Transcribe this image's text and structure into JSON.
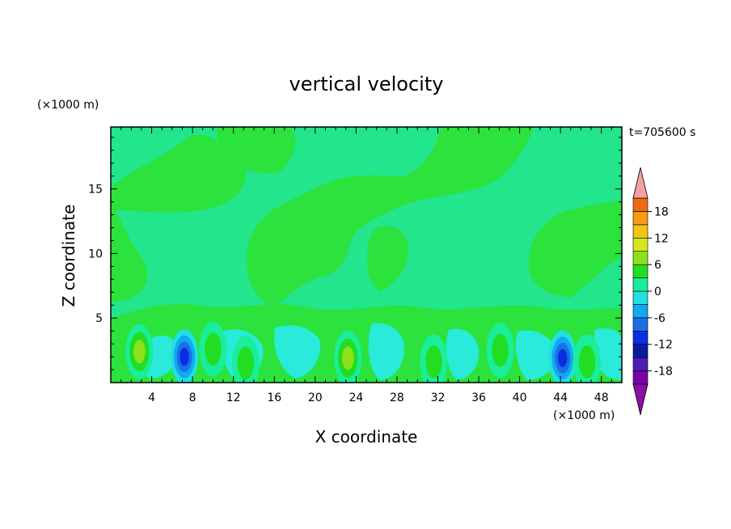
{
  "chart_data": {
    "type": "heatmap",
    "title": "vertical velocity",
    "xlabel": "X coordinate",
    "ylabel": "Z coordinate",
    "x_unit": "(×1000 m)",
    "y_unit": "(×1000 m)",
    "time_label": "t=705600 s",
    "xlim": [
      0,
      50
    ],
    "ylim": [
      0,
      19.8
    ],
    "x_ticks": [
      4,
      8,
      12,
      16,
      20,
      24,
      28,
      32,
      36,
      40,
      44,
      48
    ],
    "y_ticks": [
      5,
      10,
      15
    ],
    "colorbar": {
      "tick_labels": [
        "18",
        "12",
        "6",
        "0",
        "-6",
        "-12",
        "-18"
      ],
      "tick_values": [
        18,
        12,
        6,
        0,
        -6,
        -12,
        -18
      ],
      "levels": [
        -21,
        -18,
        -15,
        -12,
        -9,
        -6,
        -3,
        0,
        3,
        6,
        9,
        12,
        15,
        18,
        21
      ],
      "colors": [
        "#7a00a8",
        "#4b1fb0",
        "#0a1a9e",
        "#0b2ee0",
        "#1a6fe6",
        "#11a9f0",
        "#21e0e0",
        "#1aee9a",
        "#22dd22",
        "#8fe01c",
        "#d2e81a",
        "#f2c415",
        "#f49a14",
        "#f06a10",
        "#e52b18",
        "#d60e0e",
        "#f4a0a0"
      ],
      "over_color": "#f4a0a0",
      "under_color": "#8a0fa8"
    },
    "background_value": "-3 to 0",
    "features": [
      {
        "kind": "updraft",
        "x": 2.8,
        "z": 2.4,
        "w": 8
      },
      {
        "kind": "downdraft",
        "x": 7.2,
        "z": 2.0,
        "w": -12
      },
      {
        "kind": "updraft",
        "x": 10.0,
        "z": 2.6,
        "w": 6
      },
      {
        "kind": "updraft",
        "x": 13.2,
        "z": 1.5,
        "w": 7
      },
      {
        "kind": "updraft",
        "x": 23.2,
        "z": 1.9,
        "w": 10
      },
      {
        "kind": "updraft",
        "x": 31.6,
        "z": 1.6,
        "w": 6
      },
      {
        "kind": "updraft",
        "x": 38.1,
        "z": 2.5,
        "w": 6
      },
      {
        "kind": "downdraft",
        "x": 44.2,
        "z": 1.9,
        "w": -12
      },
      {
        "kind": "updraft",
        "x": 46.6,
        "z": 1.6,
        "w": 6
      }
    ]
  }
}
